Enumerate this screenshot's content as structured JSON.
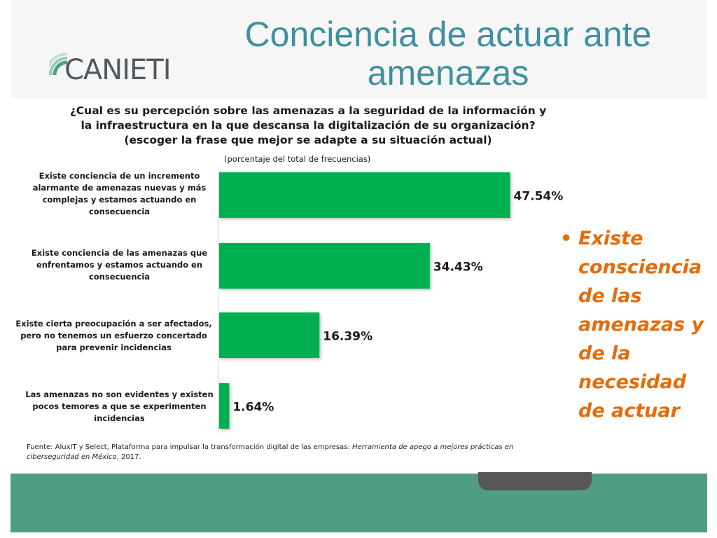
{
  "brand": {
    "name": "CANIETI"
  },
  "title": "Conciencia de actuar ante amenazas",
  "question": {
    "line1": "¿Cual es su percepción sobre las amenazas a la seguridad de la información y",
    "line2": "la infraestructura en la que descansa la digitalización de su organización?",
    "line3": "(escoger la frase que mejor se adapte a su situación actual)"
  },
  "subtitle": "(porcentaje del total de frecuencias)",
  "chart_data": {
    "type": "bar",
    "orientation": "horizontal",
    "categories": [
      "Existe conciencia de un incremento alarmante de amenazas nuevas y más complejas y estamos actuando en consecuencia",
      "Existe conciencia de las amenazas que enfrentamos y estamos actuando en consecuencia",
      "Existe cierta preocupación a ser afectados, pero no tenemos un esfuerzo concertado para prevenir incidencias",
      "Las amenazas no son evidentes y existen pocos temores a que se experimenten incidencias"
    ],
    "values": [
      47.54,
      34.43,
      16.39,
      1.64
    ],
    "value_labels": [
      "47.54%",
      "34.43%",
      "16.39%",
      "1.64%"
    ],
    "bar_color": "#00b050",
    "grid": false,
    "legend": "none"
  },
  "source": {
    "prefix": "Fuente: AluxIT y Select, Plataforma para impulsar la transformación digital de las empresas: ",
    "italic": "Herramienta de apego a mejores prácticas en ciberseguridad en México",
    "suffix": ", 2017."
  },
  "bullet": {
    "text": "Existe consciencia de las amenazas y de la necesidad de actuar",
    "color": "#e46c0a"
  },
  "colors": {
    "title": "#3f8fa0",
    "footer_band": "#4f9d84"
  }
}
